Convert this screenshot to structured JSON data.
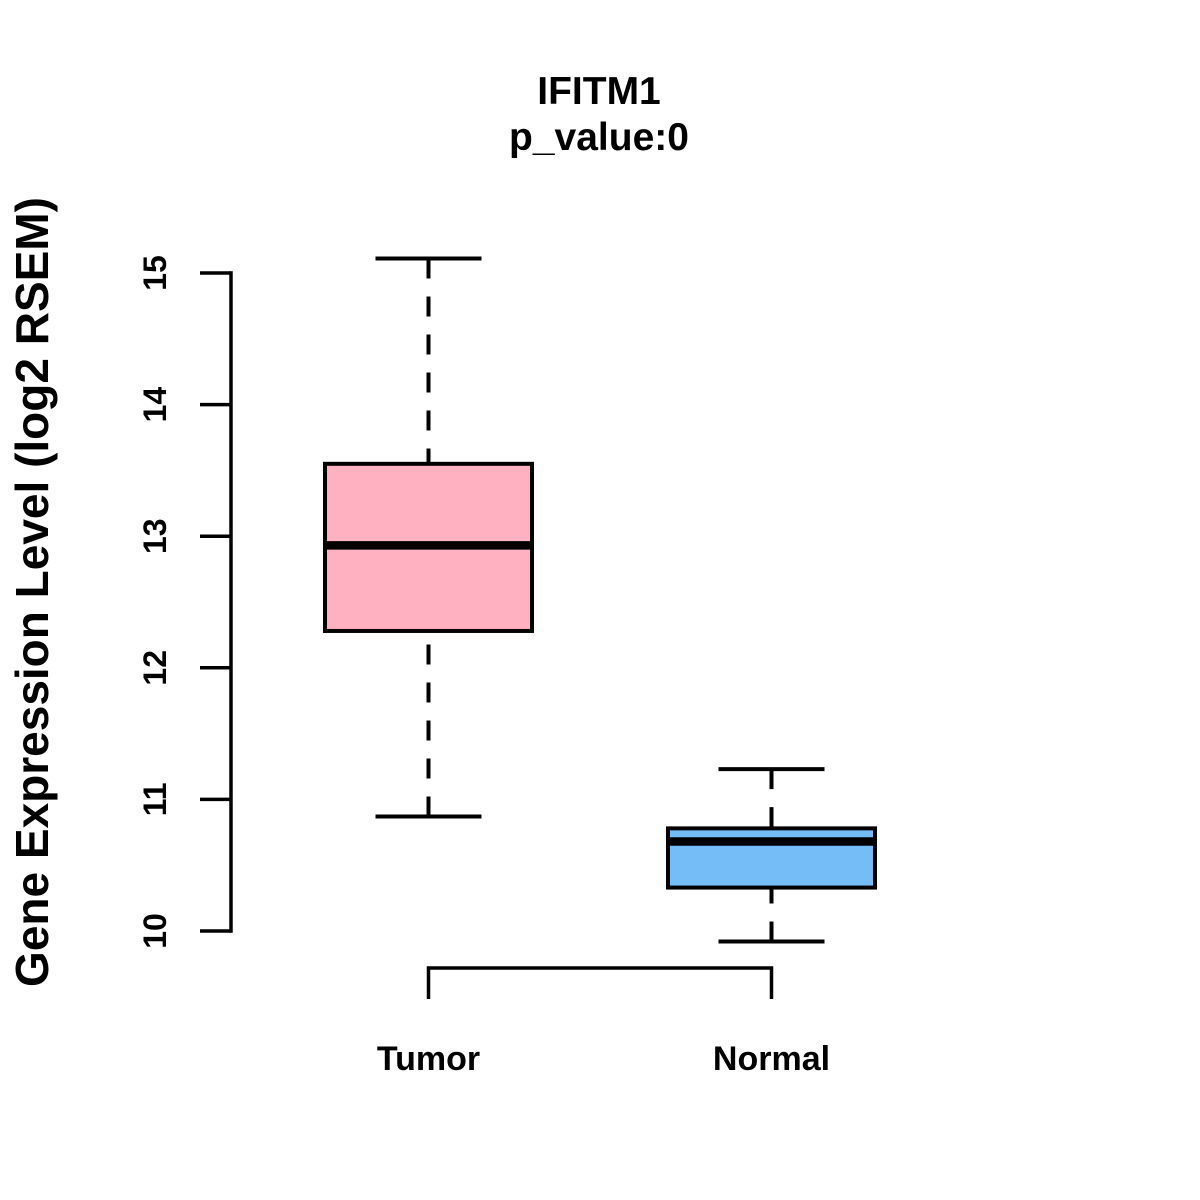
{
  "figure": {
    "background": "#FFFFFF",
    "text_color": "#000000",
    "axis_color": "#000000"
  },
  "chart_data": {
    "type": "boxplot",
    "title": "IFITM1",
    "subtitle": "p_value:0",
    "ylabel": "Gene Expression Level (log2 RSEM)",
    "xlabel": "",
    "categories": [
      "Tumor",
      "Normal"
    ],
    "y_ticks": [
      10,
      11,
      12,
      13,
      14,
      15
    ],
    "ylim": [
      9.7,
      15.3
    ],
    "grid": false,
    "legend": "none",
    "whisker_style": "dashed",
    "series": [
      {
        "name": "Tumor",
        "lower_whisker": 10.87,
        "q1": 12.28,
        "median": 12.93,
        "q3": 13.55,
        "upper_whisker": 15.11,
        "fill_color": "#FFB1C1",
        "stroke_color": "#000000"
      },
      {
        "name": "Normal",
        "lower_whisker": 9.92,
        "q1": 10.33,
        "median": 10.68,
        "q3": 10.78,
        "upper_whisker": 11.23,
        "fill_color": "#74BDF7",
        "stroke_color": "#000000"
      }
    ]
  }
}
